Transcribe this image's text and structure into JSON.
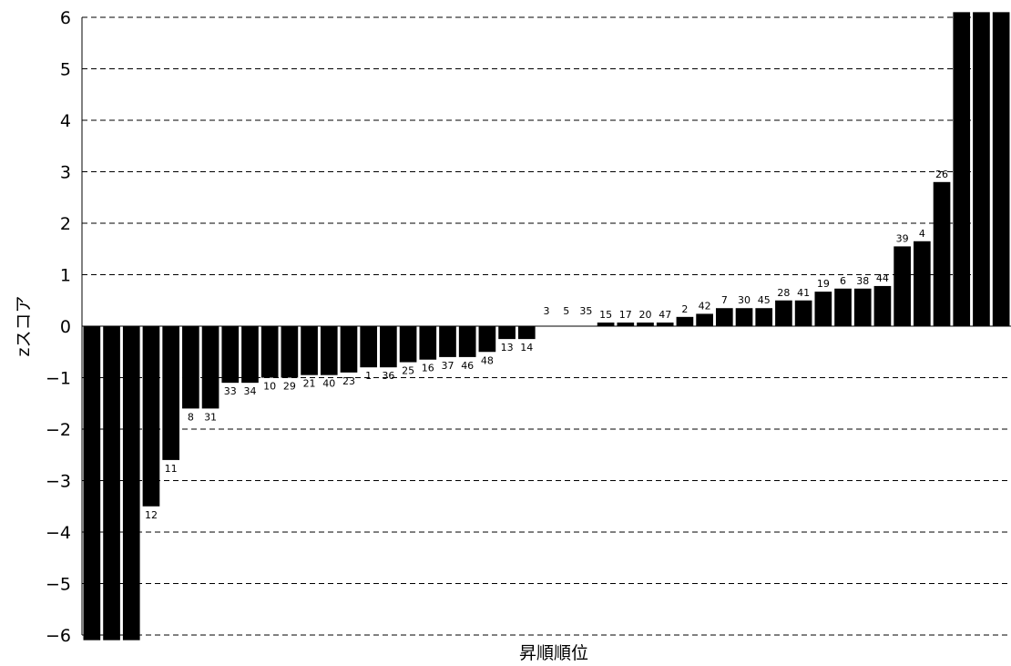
{
  "chart_data": {
    "type": "bar",
    "xlabel": "昇順順位",
    "ylabel": "zスコア",
    "ylim": [
      -6,
      6
    ],
    "yticks": [
      6,
      5,
      4,
      3,
      2,
      1,
      0,
      -1,
      -2,
      -3,
      -4,
      -5,
      -6
    ],
    "grid": true,
    "bar_color": "#000000",
    "bars": [
      {
        "label": "",
        "value": -6.1
      },
      {
        "label": "",
        "value": -6.1
      },
      {
        "label": "",
        "value": -6.1
      },
      {
        "label": "12",
        "value": -3.5
      },
      {
        "label": "11",
        "value": -2.6
      },
      {
        "label": "8",
        "value": -1.6
      },
      {
        "label": "31",
        "value": -1.6
      },
      {
        "label": "33",
        "value": -1.1
      },
      {
        "label": "34",
        "value": -1.1
      },
      {
        "label": "10",
        "value": -1.0
      },
      {
        "label": "29",
        "value": -1.0
      },
      {
        "label": "21",
        "value": -0.95
      },
      {
        "label": "40",
        "value": -0.95
      },
      {
        "label": "23",
        "value": -0.9
      },
      {
        "label": "1",
        "value": -0.8
      },
      {
        "label": "36",
        "value": -0.8
      },
      {
        "label": "25",
        "value": -0.7
      },
      {
        "label": "16",
        "value": -0.65
      },
      {
        "label": "37",
        "value": -0.6
      },
      {
        "label": "46",
        "value": -0.6
      },
      {
        "label": "48",
        "value": -0.5
      },
      {
        "label": "13",
        "value": -0.25
      },
      {
        "label": "14",
        "value": -0.25
      },
      {
        "label": "3",
        "value": 0
      },
      {
        "label": "5",
        "value": 0
      },
      {
        "label": "35",
        "value": 0
      },
      {
        "label": "15",
        "value": 0.07
      },
      {
        "label": "17",
        "value": 0.07
      },
      {
        "label": "20",
        "value": 0.07
      },
      {
        "label": "47",
        "value": 0.07
      },
      {
        "label": "2",
        "value": 0.18
      },
      {
        "label": "42",
        "value": 0.24
      },
      {
        "label": "7",
        "value": 0.35
      },
      {
        "label": "30",
        "value": 0.35
      },
      {
        "label": "45",
        "value": 0.35
      },
      {
        "label": "28",
        "value": 0.5
      },
      {
        "label": "41",
        "value": 0.5
      },
      {
        "label": "19",
        "value": 0.67
      },
      {
        "label": "6",
        "value": 0.73
      },
      {
        "label": "38",
        "value": 0.73
      },
      {
        "label": "44",
        "value": 0.78
      },
      {
        "label": "39",
        "value": 1.55
      },
      {
        "label": "4",
        "value": 1.65
      },
      {
        "label": "26",
        "value": 2.8
      },
      {
        "label": "",
        "value": 6.1
      },
      {
        "label": "",
        "value": 6.1
      },
      {
        "label": "",
        "value": 6.1
      }
    ]
  }
}
